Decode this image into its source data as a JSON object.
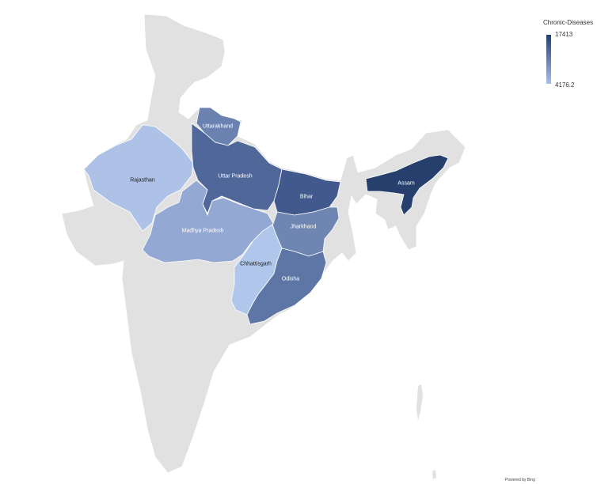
{
  "map": {
    "base_color": "#e1e1e1",
    "border_color": "#ffffff"
  },
  "legend": {
    "title": "Chronic-Diseases",
    "max_label": "17413",
    "min_label": "4176.2",
    "color_high": "#24406c",
    "color_low": "#a9c0e8"
  },
  "regions": [
    {
      "name": "Uttarakhand",
      "color": "#6b82b0"
    },
    {
      "name": "Uttar Pradesh",
      "color": "#50679a"
    },
    {
      "name": "Bihar",
      "color": "#41598c"
    },
    {
      "name": "Rajasthan",
      "color": "#adc2e6"
    },
    {
      "name": "Madhya Pradesh",
      "color": "#93a8d2"
    },
    {
      "name": "Jharkhand",
      "color": "#6f86b3"
    },
    {
      "name": "Chhattisgarh",
      "color": "#b0c6eb"
    },
    {
      "name": "Odisha",
      "color": "#5e76a6"
    },
    {
      "name": "Assam",
      "color": "#263f6d"
    }
  ],
  "attribution": "Powered by Bing"
}
